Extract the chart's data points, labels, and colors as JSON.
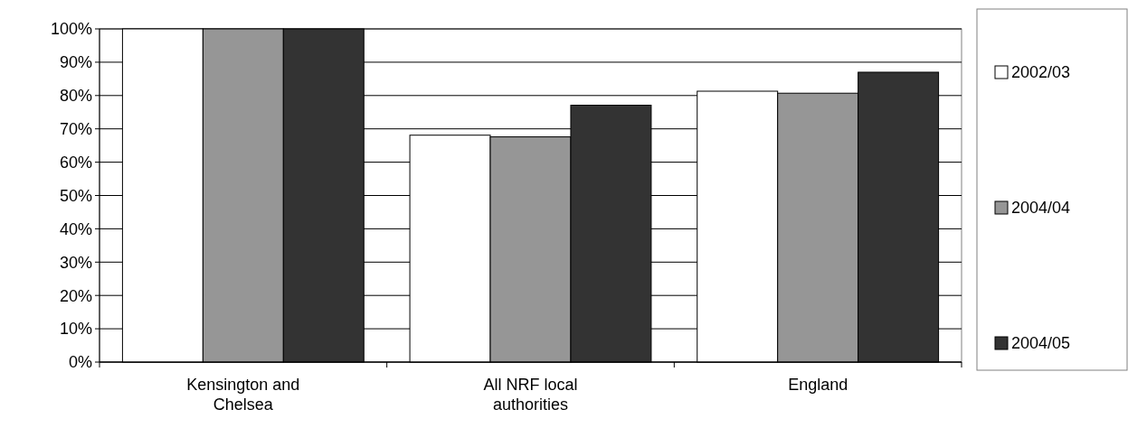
{
  "chart_data": {
    "type": "bar",
    "categories": [
      "Kensington and Chelsea",
      "All NRF local authorities",
      "England"
    ],
    "series": [
      {
        "name": "2002/03",
        "color": "#ffffff",
        "values": [
          100,
          68.1,
          81.3
        ]
      },
      {
        "name": "2004/04",
        "color": "#969696",
        "values": [
          100,
          67.6,
          80.7
        ]
      },
      {
        "name": "2004/05",
        "color": "#333333",
        "values": [
          100,
          77.1,
          87.0
        ]
      }
    ],
    "ylim": [
      0,
      100
    ],
    "yticks": [
      {
        "value": 0,
        "label": "0%"
      },
      {
        "value": 10,
        "label": "10%"
      },
      {
        "value": 20,
        "label": "20%"
      },
      {
        "value": 30,
        "label": "30%"
      },
      {
        "value": 40,
        "label": "40%"
      },
      {
        "value": 50,
        "label": "50%"
      },
      {
        "value": 60,
        "label": "60%"
      },
      {
        "value": 70,
        "label": "70%"
      },
      {
        "value": 80,
        "label": "80%"
      },
      {
        "value": 90,
        "label": "90%"
      },
      {
        "value": 100,
        "label": "100%"
      }
    ],
    "grid": "y",
    "legend": "right"
  }
}
